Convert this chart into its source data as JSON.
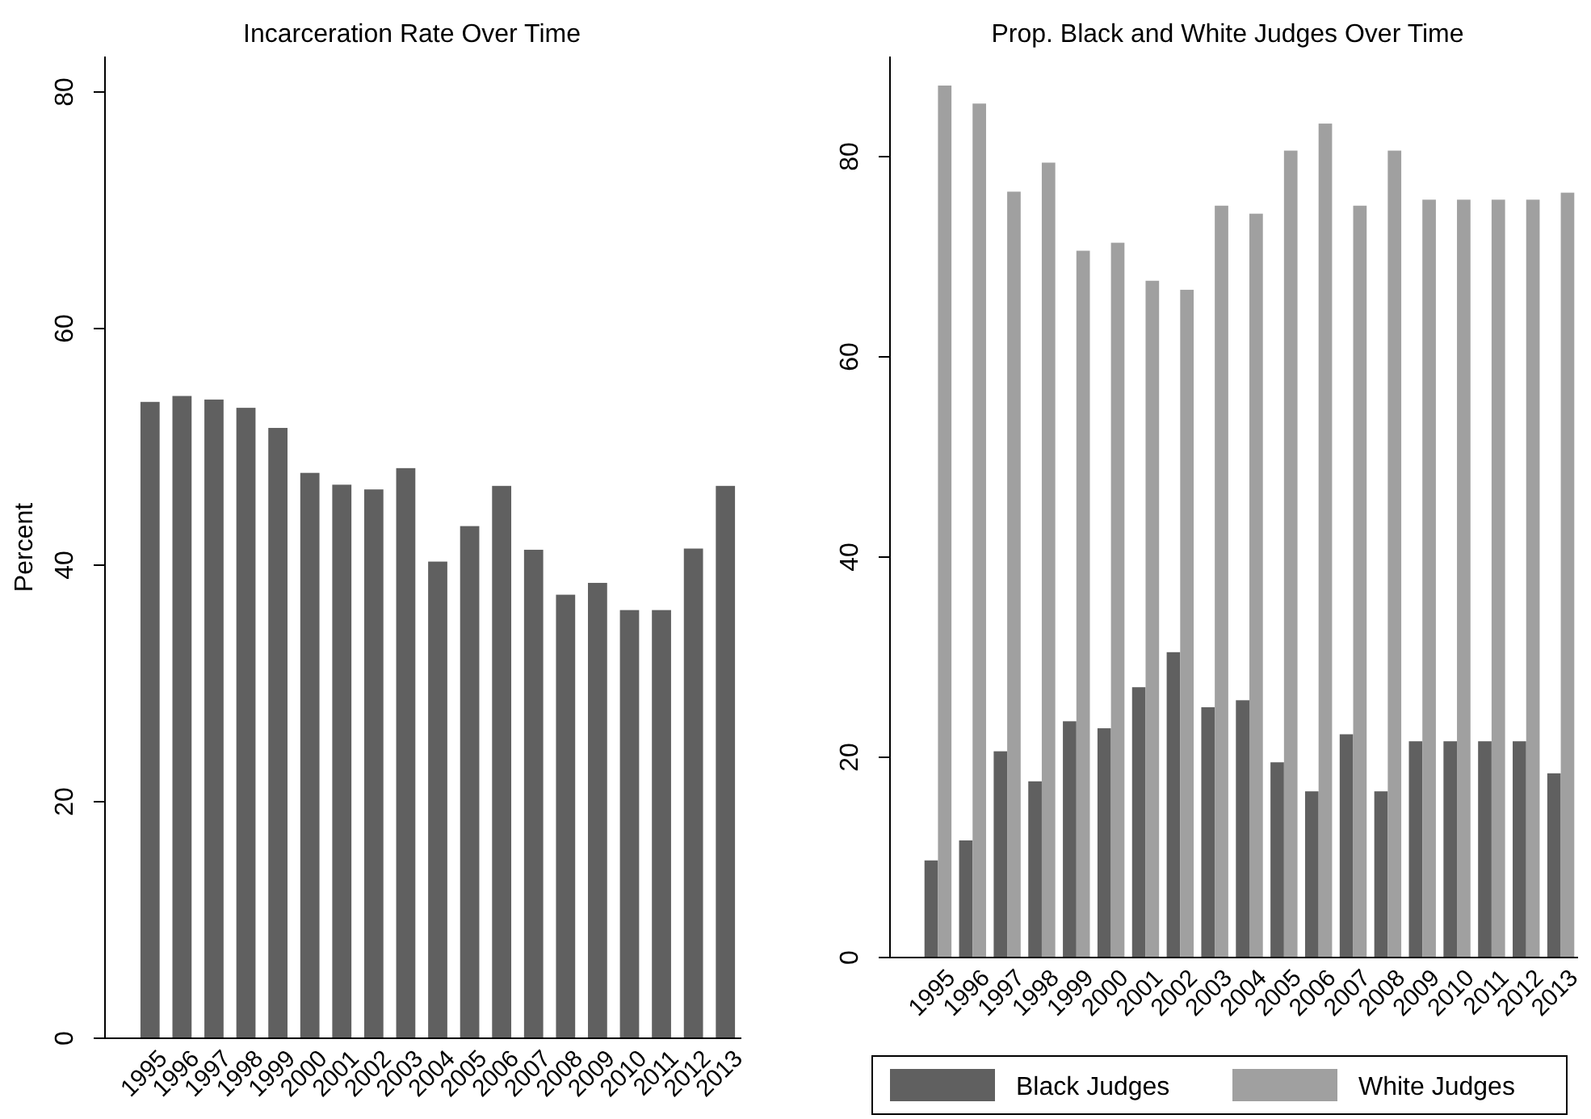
{
  "chart_data": [
    {
      "type": "bar",
      "title": "Incarceration Rate Over Time",
      "ylabel": "Percent",
      "categories": [
        "1995",
        "1996",
        "1997",
        "1998",
        "1999",
        "2000",
        "2001",
        "2002",
        "2003",
        "2004",
        "2005",
        "2006",
        "2007",
        "2008",
        "2009",
        "2010",
        "2011",
        "2012",
        "2013"
      ],
      "series": [
        {
          "color": "#606060",
          "values": [
            53.8,
            54.3,
            54.0,
            53.3,
            51.6,
            47.8,
            46.8,
            46.4,
            48.2,
            40.3,
            43.3,
            46.7,
            41.3,
            37.5,
            38.5,
            36.2,
            36.2,
            41.4,
            46.7
          ]
        }
      ],
      "ylim": [
        0,
        83
      ],
      "yticks": [
        0,
        20,
        40,
        60,
        80
      ],
      "grid": false,
      "legend": false
    },
    {
      "type": "bar",
      "title": "Prop. Black and White Judges Over Time",
      "categories": [
        "1995",
        "1996",
        "1997",
        "1998",
        "1999",
        "2000",
        "2001",
        "2002",
        "2003",
        "2004",
        "2005",
        "2006",
        "2007",
        "2008",
        "2009",
        "2010",
        "2011",
        "2012",
        "2013"
      ],
      "series": [
        {
          "name": "Black Judges",
          "color": "#606060",
          "values": [
            9.7,
            11.7,
            20.6,
            17.6,
            23.6,
            22.9,
            27.0,
            30.5,
            25.0,
            25.7,
            19.5,
            16.6,
            22.3,
            16.6,
            21.6,
            21.6,
            21.6,
            21.6,
            18.4
          ]
        },
        {
          "name": "White Judges",
          "color": "#a0a0a0",
          "values": [
            87.1,
            85.3,
            76.5,
            79.4,
            70.6,
            71.4,
            67.6,
            66.7,
            75.1,
            74.3,
            80.6,
            83.3,
            75.1,
            80.6,
            75.7,
            75.7,
            75.7,
            75.7,
            76.4
          ]
        }
      ],
      "ylim": [
        0,
        90
      ],
      "yticks": [
        0,
        20,
        40,
        60,
        80
      ],
      "grid": false,
      "legend": "bottom"
    }
  ]
}
